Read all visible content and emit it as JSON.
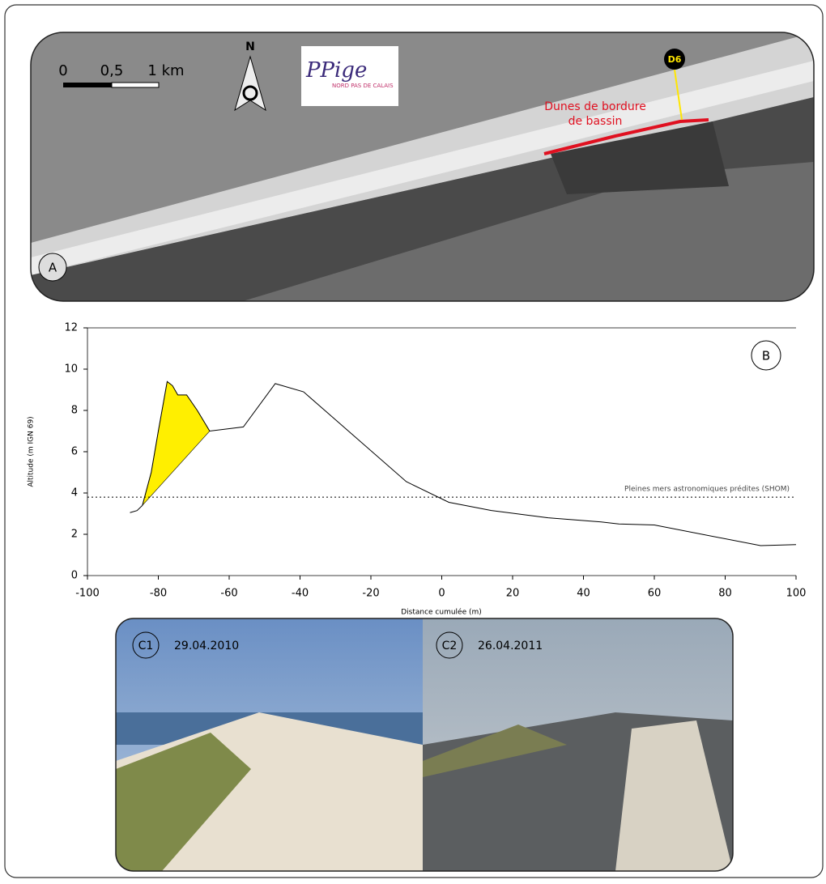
{
  "map": {
    "scale_labels": [
      "0",
      "0,5",
      "1 km"
    ],
    "north": "N",
    "logo": "PPige",
    "logo_subtitle": "NORD PAS DE CALAIS",
    "feature_label_lines": [
      "Dunes de bordure",
      "de bassin"
    ],
    "site": "D6",
    "panel": "A"
  },
  "chart_data": {
    "type": "line",
    "panel": "B",
    "x_label": "Distance cumulée (m)",
    "y_label": "Altitude (m IGN 69)",
    "x": [
      -88,
      -86,
      -84.5,
      -82,
      -80,
      -77.5,
      -76,
      -74.5,
      -72,
      -69,
      -65.5,
      -56,
      -47,
      -39,
      -10,
      2,
      14,
      30,
      45,
      50,
      60,
      90,
      100
    ],
    "values": [
      3.05,
      3.15,
      3.4,
      5,
      7,
      9.4,
      9.2,
      8.75,
      8.75,
      8,
      7,
      7.2,
      9.3,
      8.9,
      4.55,
      3.55,
      3.15,
      2.8,
      2.6,
      2.5,
      2.45,
      1.45,
      1.5
    ],
    "color": "#000000",
    "highlight": {
      "color": "#ffef00",
      "x": [
        -84.5,
        -82,
        -80,
        -77.5,
        -76,
        -74.5,
        -72,
        -69,
        -65.5
      ],
      "values": [
        3.4,
        5,
        7,
        9.4,
        9.2,
        8.75,
        8.75,
        8,
        7
      ]
    },
    "reference_line": {
      "value": 3.8,
      "label": "Pleines mers astronomiques prédites (SHOM)"
    },
    "xlim": [
      -100,
      100
    ],
    "ylim": [
      0,
      12
    ],
    "xticks": [
      -100,
      -80,
      -60,
      -40,
      -20,
      0,
      20,
      40,
      60,
      80,
      100
    ],
    "yticks": [
      0,
      2,
      4,
      6,
      8,
      10,
      12
    ]
  },
  "photos": [
    {
      "panel": "C1",
      "date": "29.04.2010"
    },
    {
      "panel": "C2",
      "date": "26.04.2011"
    }
  ]
}
